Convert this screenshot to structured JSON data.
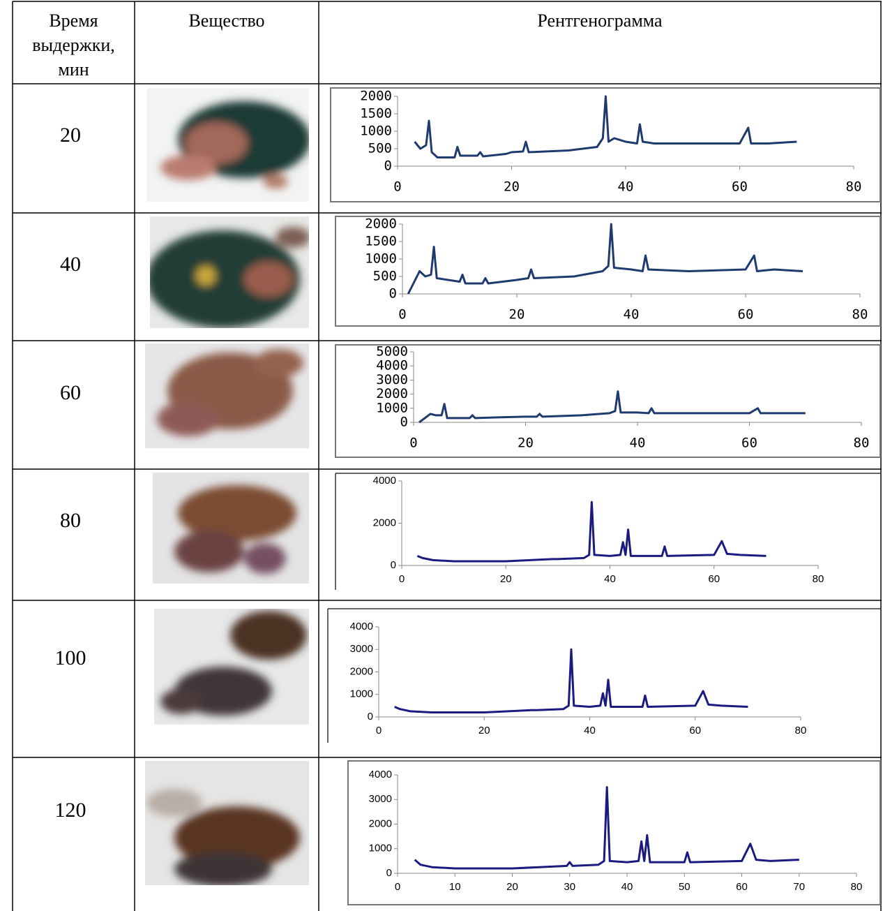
{
  "table": {
    "header": [
      "Время выдержки, мин",
      "Вещество",
      "Рентгенограмма"
    ],
    "rows": [
      {
        "time": "20",
        "chart": {
          "type": "line",
          "color": "#1f3a6e",
          "xlim": [
            0,
            80
          ],
          "ylim": [
            0,
            2000
          ],
          "xticks": [
            0,
            20,
            40,
            60,
            80
          ],
          "yticks": [
            0,
            500,
            1000,
            1500,
            2000
          ],
          "x": [
            3,
            4,
            5,
            5.5,
            6,
            7,
            10,
            10.5,
            11,
            14,
            14.5,
            15,
            19,
            20,
            22,
            22.5,
            23,
            30,
            35,
            36,
            36.5,
            37,
            38,
            40,
            42,
            42.5,
            43,
            45,
            50,
            55,
            60,
            61.5,
            62,
            65,
            70
          ],
          "values": [
            700,
            500,
            600,
            1300,
            400,
            250,
            250,
            550,
            300,
            300,
            400,
            280,
            350,
            400,
            420,
            700,
            400,
            450,
            550,
            800,
            2000,
            700,
            800,
            700,
            650,
            1200,
            700,
            650,
            650,
            650,
            650,
            1100,
            650,
            650,
            700
          ]
        }
      },
      {
        "time": "40",
        "chart": {
          "type": "line",
          "color": "#1f3a6e",
          "xlim": [
            0,
            80
          ],
          "ylim": [
            0,
            2000
          ],
          "xticks": [
            0,
            20,
            40,
            60,
            80
          ],
          "yticks": [
            0,
            500,
            1000,
            1500,
            2000
          ],
          "x": [
            1,
            3,
            4,
            5,
            5.5,
            6,
            10,
            10.5,
            11,
            14,
            14.5,
            15,
            20,
            22,
            22.5,
            23,
            30,
            35,
            36,
            36.5,
            37,
            40,
            42,
            42.5,
            43,
            50,
            60,
            61.5,
            62,
            65,
            70
          ],
          "values": [
            0,
            650,
            500,
            550,
            1350,
            450,
            350,
            550,
            300,
            300,
            450,
            300,
            400,
            450,
            700,
            450,
            500,
            650,
            800,
            2000,
            750,
            700,
            650,
            1100,
            700,
            650,
            700,
            1100,
            650,
            700,
            650
          ]
        }
      },
      {
        "time": "60",
        "chart": {
          "type": "line",
          "color": "#1f3a6e",
          "xlim": [
            0,
            80
          ],
          "ylim": [
            0,
            5000
          ],
          "xticks": [
            0,
            20,
            40,
            60,
            80
          ],
          "yticks": [
            0,
            1000,
            2000,
            3000,
            4000,
            5000
          ],
          "x": [
            1,
            3,
            4,
            5,
            5.5,
            6,
            10,
            10.5,
            11,
            15,
            20,
            22,
            22.5,
            23,
            30,
            35,
            36,
            36.5,
            37,
            40,
            42,
            42.5,
            43,
            50,
            60,
            61.5,
            62,
            70
          ],
          "values": [
            0,
            600,
            500,
            500,
            1300,
            300,
            300,
            500,
            300,
            350,
            400,
            400,
            600,
            400,
            500,
            650,
            800,
            2200,
            700,
            700,
            650,
            1000,
            650,
            650,
            650,
            1000,
            650,
            650
          ]
        }
      },
      {
        "time": "80",
        "chart": {
          "type": "line",
          "color": "#1a1a80",
          "xlim": [
            0,
            80
          ],
          "ylim": [
            0,
            4000
          ],
          "xticks": [
            0,
            20,
            40,
            60,
            80
          ],
          "yticks": [
            0,
            2000,
            4000
          ],
          "x": [
            3,
            4,
            6,
            10,
            20,
            29,
            30,
            35,
            36,
            36.5,
            37,
            40,
            42,
            42.5,
            43,
            43.5,
            44,
            50,
            50.5,
            51,
            60,
            61.5,
            62.5,
            65,
            70
          ],
          "values": [
            450,
            350,
            250,
            200,
            200,
            300,
            300,
            350,
            500,
            3000,
            500,
            450,
            500,
            1100,
            500,
            1700,
            450,
            450,
            900,
            450,
            500,
            1150,
            550,
            500,
            450
          ]
        }
      },
      {
        "time": "100",
        "chart": {
          "type": "line",
          "color": "#1a1a80",
          "xlim": [
            0,
            80
          ],
          "ylim": [
            0,
            4000
          ],
          "xticks": [
            0,
            20,
            40,
            60,
            80
          ],
          "yticks": [
            0,
            1000,
            2000,
            3000,
            4000
          ],
          "x": [
            3,
            4,
            6,
            10,
            20,
            29,
            30,
            35,
            36,
            36.5,
            37,
            40,
            42,
            42.5,
            43,
            43.5,
            44,
            50,
            50.5,
            51,
            60,
            61.5,
            62.5,
            65,
            70
          ],
          "values": [
            450,
            350,
            250,
            200,
            200,
            300,
            300,
            350,
            500,
            3000,
            500,
            450,
            500,
            1050,
            500,
            1650,
            450,
            450,
            950,
            450,
            500,
            1150,
            550,
            500,
            450
          ]
        }
      },
      {
        "time": "120",
        "chart": {
          "type": "line",
          "color": "#1a1a80",
          "xlim": [
            0,
            80
          ],
          "ylim": [
            0,
            4000
          ],
          "xticks": [
            0,
            10,
            20,
            30,
            40,
            50,
            60,
            70,
            80
          ],
          "yticks": [
            0,
            1000,
            2000,
            3000,
            4000
          ],
          "x": [
            3,
            4,
            6,
            10,
            20,
            29.5,
            30,
            30.5,
            35,
            36,
            36.5,
            37,
            40,
            42,
            42.5,
            43,
            43.5,
            44,
            50,
            50.5,
            51,
            60,
            61.5,
            62.5,
            65,
            70
          ],
          "values": [
            550,
            350,
            250,
            200,
            200,
            300,
            450,
            300,
            350,
            500,
            3500,
            500,
            450,
            500,
            1300,
            500,
            1550,
            450,
            450,
            850,
            450,
            500,
            1200,
            550,
            500,
            550
          ]
        }
      }
    ]
  }
}
